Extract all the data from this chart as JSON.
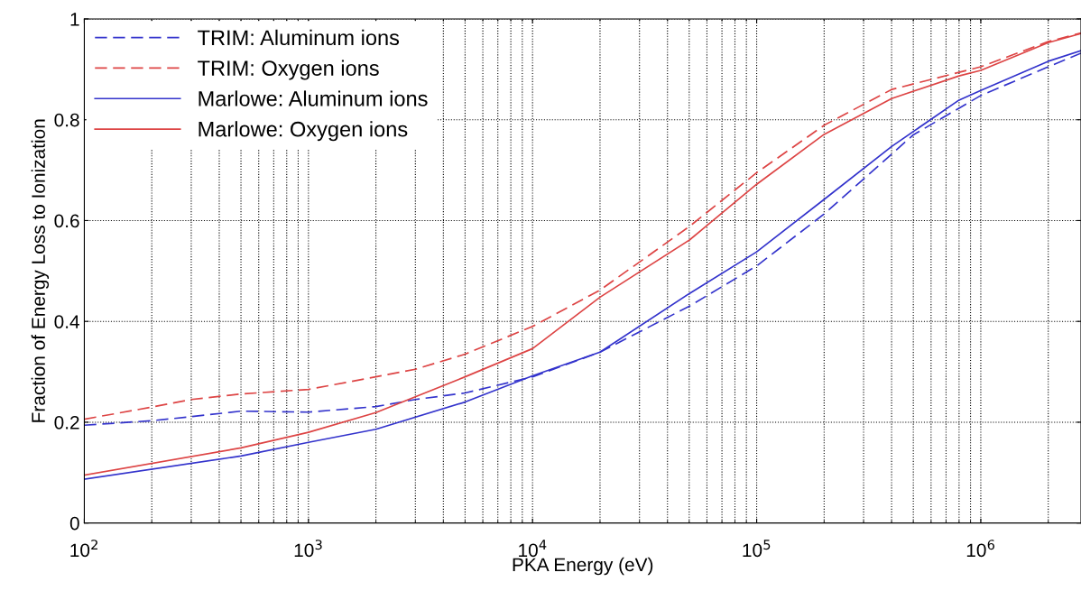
{
  "chart_data": {
    "type": "line",
    "xlabel": "PKA Energy (eV)",
    "ylabel": "Fraction of Energy Loss to Ionization",
    "log": "x",
    "xlim": [
      100,
      2800000
    ],
    "ylim": [
      0,
      1
    ],
    "xticks": [
      {
        "value": 100,
        "label": "10$^{2}$"
      },
      {
        "value": 1000,
        "label": "10$^{3}$"
      },
      {
        "value": 10000,
        "label": "10$^{4}$"
      },
      {
        "value": 100000,
        "label": "10$^{5}$"
      },
      {
        "value": 1000000,
        "label": "10$^{6}$"
      }
    ],
    "yticks": [
      0,
      0.2,
      0.4,
      0.6,
      0.8,
      1
    ],
    "grid": true,
    "legend": "top left",
    "series": [
      {
        "name": "TRIM: Aluminum ions",
        "color": "#3333cc",
        "line_style": "dashed",
        "x": [
          100,
          200,
          300,
          500,
          1000,
          2000,
          3000,
          5000,
          10000,
          20000,
          50000,
          100000,
          200000,
          500000,
          1000000,
          2000000,
          2800000
        ],
        "values": [
          0.194,
          0.203,
          0.211,
          0.222,
          0.22,
          0.231,
          0.245,
          0.258,
          0.29,
          0.339,
          0.43,
          0.51,
          0.613,
          0.77,
          0.848,
          0.905,
          0.932
        ]
      },
      {
        "name": "TRIM: Oxygen ions",
        "color": "#dd4444",
        "line_style": "dashed",
        "x": [
          100,
          200,
          300,
          500,
          1000,
          2000,
          3000,
          5000,
          10000,
          20000,
          50000,
          100000,
          200000,
          400000,
          1000000,
          2000000,
          2800000
        ],
        "values": [
          0.206,
          0.23,
          0.245,
          0.256,
          0.265,
          0.29,
          0.305,
          0.335,
          0.39,
          0.462,
          0.588,
          0.695,
          0.789,
          0.86,
          0.905,
          0.955,
          0.972
        ]
      },
      {
        "name": "Marlowe: Aluminum ions",
        "color": "#3333cc",
        "line_style": "solid",
        "x": [
          100,
          500,
          1000,
          2000,
          5000,
          10000,
          20000,
          50000,
          100000,
          200000,
          400000,
          800000,
          1000000,
          2000000,
          2800000
        ],
        "values": [
          0.087,
          0.133,
          0.16,
          0.186,
          0.24,
          0.292,
          0.339,
          0.455,
          0.538,
          0.642,
          0.747,
          0.839,
          0.858,
          0.916,
          0.937
        ]
      },
      {
        "name": "Marlowe: Oxygen ions",
        "color": "#dd4444",
        "line_style": "solid",
        "x": [
          100,
          500,
          1000,
          2000,
          5000,
          10000,
          20000,
          50000,
          100000,
          200000,
          400000,
          800000,
          1000000,
          2000000,
          2800000
        ],
        "values": [
          0.095,
          0.149,
          0.18,
          0.219,
          0.29,
          0.346,
          0.448,
          0.561,
          0.672,
          0.771,
          0.842,
          0.887,
          0.898,
          0.953,
          0.971
        ]
      }
    ]
  }
}
